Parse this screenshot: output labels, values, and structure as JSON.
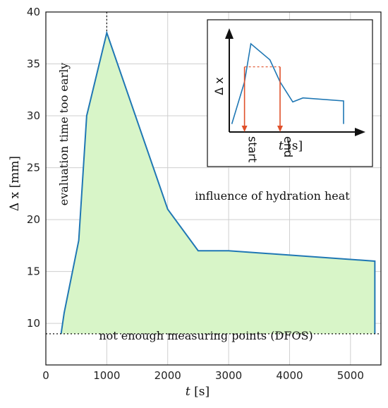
{
  "chart_data": {
    "type": "area",
    "xlabel_var": "t",
    "xlabel_unit": "[s]",
    "ylabel": "Δ x [mm]",
    "xlim": [
      0,
      5500
    ],
    "ylim": [
      6,
      40
    ],
    "xticks": [
      0,
      1000,
      2000,
      3000,
      4000,
      5000
    ],
    "yticks": [
      10,
      15,
      20,
      25,
      30,
      35,
      40
    ],
    "grid": true,
    "x": [
      250,
      300,
      540,
      670,
      1000,
      2000,
      2500,
      3000,
      5400,
      5400
    ],
    "y": [
      9,
      11,
      18,
      30,
      38,
      21,
      17,
      17,
      16,
      9
    ],
    "baseline": 9,
    "vline_x": 1000,
    "annotations": {
      "early": "evaluation time too early",
      "hydration": "influence of hydration heat",
      "dfos": "not enough measuring points (DFOS)"
    },
    "inset": {
      "ylabel": "Δ x",
      "xlabel_var": "t",
      "xlabel_unit": "[s]",
      "start_label": "start",
      "end_label": "end",
      "x": [
        0.02,
        0.12,
        0.17,
        0.32,
        0.4,
        0.5,
        0.58,
        0.9,
        0.9
      ],
      "y": [
        0.08,
        0.5,
        0.88,
        0.72,
        0.5,
        0.3,
        0.34,
        0.31,
        0.08
      ],
      "threshold_y": 0.65,
      "start_x": 0.12,
      "end_x": 0.4
    },
    "colors": {
      "line": "#1f77b4",
      "fill": "#d8f5c8",
      "arrow": "#e0502a",
      "grid": "#cfcfcf"
    }
  }
}
